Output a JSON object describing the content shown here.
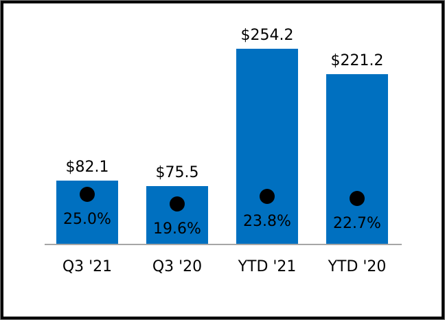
{
  "chart_data": {
    "type": "bar",
    "title": "",
    "xlabel": "",
    "ylabel": "",
    "grid": false,
    "legend": false,
    "categories": [
      "Q3 '21",
      "Q3 '20",
      "YTD '21",
      "YTD '20"
    ],
    "series": [
      {
        "name": "dollar_series",
        "type": "bar",
        "values": [
          82.1,
          75.5,
          254.2,
          221.2
        ],
        "labels": [
          "$82.1",
          "$75.5",
          "$254.2",
          "$221.2"
        ],
        "labels_position": "above-bars"
      },
      {
        "name": "percent_series",
        "type": "scatter",
        "values": [
          25.0,
          19.6,
          23.8,
          22.7
        ],
        "labels": [
          "25.0%",
          "19.6%",
          "23.8%",
          "22.7%"
        ],
        "labels_position": "inside-bars-below-markers"
      }
    ],
    "colors": {
      "bar": "#0070C0",
      "marker": "#000000",
      "axis_line": "#a6a6a6",
      "text": "#000000",
      "frame_border": "#000000",
      "frame_edge": "#7f7f7f",
      "background": "#ffffff"
    }
  }
}
